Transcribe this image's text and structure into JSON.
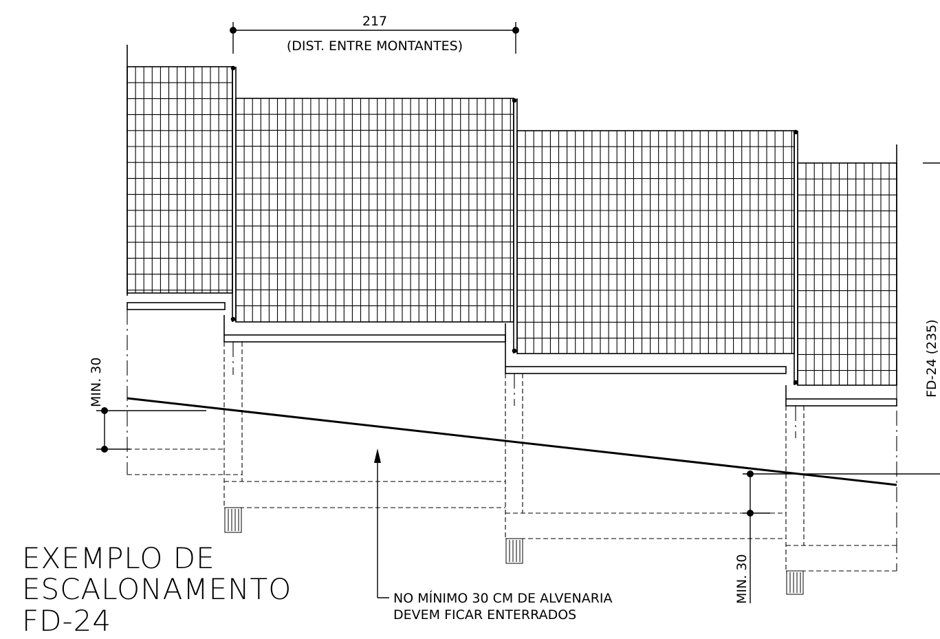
{
  "dimension_top": {
    "value": "217",
    "note": "(DIST. ENTRE MONTANTES)"
  },
  "min_left": "MIN. 30",
  "min_right": "MIN. 30",
  "side_label": "FD-24 (235)",
  "note": {
    "line1": "NO MÍNIMO 30 CM DE ALVENARIA",
    "line2": "DEVEM FICAR ENTERRADOS"
  },
  "title": {
    "line1": "EXEMPLO DE",
    "line2": "ESCALONAMENTO",
    "line3": "FD-24"
  }
}
